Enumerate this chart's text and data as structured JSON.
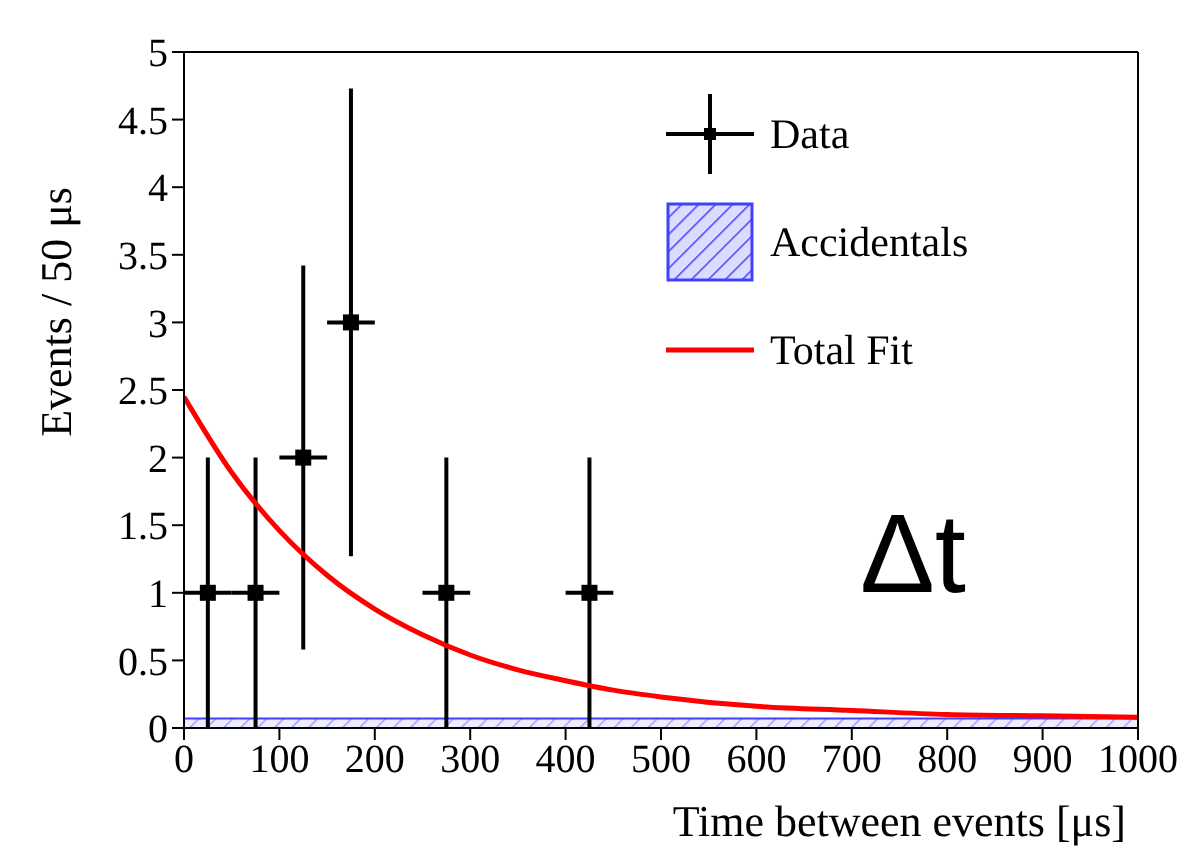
{
  "chart_data": {
    "type": "scatter",
    "xlabel": "Time between events [μs]",
    "ylabel": "Events / 50 μs",
    "x": [
      25,
      75,
      125,
      175,
      275,
      425
    ],
    "series": [
      {
        "name": "Data",
        "color": "#000000",
        "marker": "square",
        "values": [
          1,
          1,
          2,
          3,
          1,
          1
        ],
        "errors": [
          [
            0,
            2
          ],
          [
            0,
            2
          ],
          [
            0.58,
            3.42
          ],
          [
            1.27,
            4.73
          ],
          [
            0,
            2
          ],
          [
            0,
            2
          ]
        ],
        "xerrors": [
          25,
          25,
          25,
          25,
          25,
          25
        ]
      },
      {
        "name": "Total Fit",
        "type": "line",
        "color": "#ff0000",
        "marker": "none",
        "x": [
          0,
          50,
          100,
          150,
          200,
          250,
          300,
          350,
          400,
          450,
          500,
          600,
          700,
          800,
          900,
          1000
        ],
        "values": [
          2.45,
          1.89,
          1.46,
          1.13,
          0.88,
          0.69,
          0.54,
          0.43,
          0.35,
          0.28,
          0.23,
          0.16,
          0.13,
          0.1,
          0.09,
          0.08
        ]
      }
    ],
    "bands": [
      {
        "axis": "y",
        "from": 0,
        "to": 0.07,
        "label": "Accidentals",
        "color": "#4040ff"
      }
    ],
    "xlim": [
      0,
      1000
    ],
    "xticks": [
      0,
      100,
      200,
      300,
      400,
      500,
      600,
      700,
      800,
      900,
      1000
    ],
    "ylim": [
      0,
      5
    ],
    "yticks": [
      0,
      0.5,
      1,
      1.5,
      2,
      2.5,
      3,
      3.5,
      4,
      4.5,
      5
    ],
    "grid": false,
    "legend": "top right",
    "annotations": [
      "Δt"
    ]
  }
}
